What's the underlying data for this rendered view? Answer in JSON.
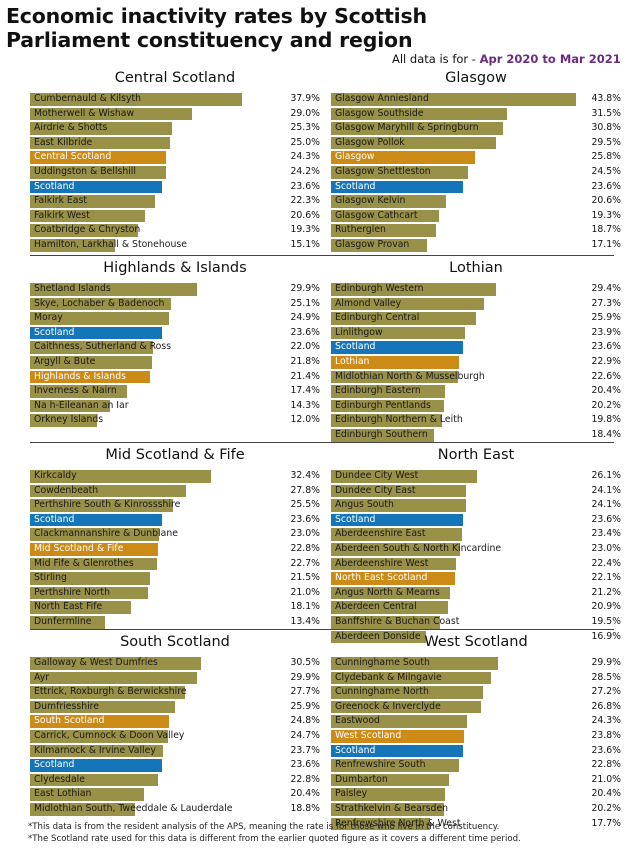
{
  "title": "Economic inactivity rates by Scottish Parliament constituency and region",
  "subtitle": {
    "prefix": "All data is for - ",
    "period": "Apr 2020 to Mar 2021"
  },
  "colors": {
    "constituency": "#9a9148",
    "region": "#cc8a16",
    "scotland": "#1475b8"
  },
  "footnotes": [
    "*This data is from the resident analysis of the APS, meaning the rate is for those who live in the constituency.",
    "*The Scotland rate used for this data is different from the earlier quoted figure as it covers a different time period."
  ],
  "chart_data": [
    {
      "type": "bar",
      "title": "Central Scotland",
      "xlim": [
        0,
        45
      ],
      "rows": [
        {
          "label": "Cumbernauld & Kilsyth",
          "value": 37.9,
          "display": "37.9%",
          "kind": "constituency"
        },
        {
          "label": "Motherwell & Wishaw",
          "value": 29.0,
          "display": "29.0%",
          "kind": "constituency"
        },
        {
          "label": "Airdrie & Shotts",
          "value": 25.3,
          "display": "25.3%",
          "kind": "constituency"
        },
        {
          "label": "East Kilbride",
          "value": 25.0,
          "display": "25.0%",
          "kind": "constituency"
        },
        {
          "label": "Central Scotland",
          "value": 24.3,
          "display": "24.3%",
          "kind": "region"
        },
        {
          "label": "Uddingston & Bellshill",
          "value": 24.2,
          "display": "24.2%",
          "kind": "constituency"
        },
        {
          "label": "Scotland",
          "value": 23.6,
          "display": "23.6%",
          "kind": "scotland"
        },
        {
          "label": "Falkirk East",
          "value": 22.3,
          "display": "22.3%",
          "kind": "constituency"
        },
        {
          "label": "Falkirk West",
          "value": 20.6,
          "display": "20.6%",
          "kind": "constituency"
        },
        {
          "label": "Coatbridge & Chryston",
          "value": 19.3,
          "display": "19.3%",
          "kind": "constituency"
        },
        {
          "label": "Hamilton, Larkhall & Stonehouse",
          "value": 15.1,
          "display": "15.1%",
          "kind": "constituency"
        }
      ]
    },
    {
      "type": "bar",
      "title": "Glasgow",
      "xlim": [
        0,
        45
      ],
      "rows": [
        {
          "label": "Glasgow Anniesland",
          "value": 43.8,
          "display": "43.8%",
          "kind": "constituency"
        },
        {
          "label": "Glasgow Southside",
          "value": 31.5,
          "display": "31.5%",
          "kind": "constituency"
        },
        {
          "label": "Glasgow Maryhill & Springburn",
          "value": 30.8,
          "display": "30.8%",
          "kind": "constituency"
        },
        {
          "label": "Glasgow Pollok",
          "value": 29.5,
          "display": "29.5%",
          "kind": "constituency"
        },
        {
          "label": "Glasgow",
          "value": 25.8,
          "display": "25.8%",
          "kind": "region"
        },
        {
          "label": "Glasgow Shettleston",
          "value": 24.5,
          "display": "24.5%",
          "kind": "constituency"
        },
        {
          "label": "Scotland",
          "value": 23.6,
          "display": "23.6%",
          "kind": "scotland"
        },
        {
          "label": "Glasgow Kelvin",
          "value": 20.6,
          "display": "20.6%",
          "kind": "constituency"
        },
        {
          "label": "Glasgow Cathcart",
          "value": 19.3,
          "display": "19.3%",
          "kind": "constituency"
        },
        {
          "label": "Rutherglen",
          "value": 18.7,
          "display": "18.7%",
          "kind": "constituency"
        },
        {
          "label": "Glasgow Provan",
          "value": 17.1,
          "display": "17.1%",
          "kind": "constituency"
        }
      ]
    },
    {
      "type": "bar",
      "title": "Highlands & Islands",
      "xlim": [
        0,
        45
      ],
      "rows": [
        {
          "label": "Shetland Islands",
          "value": 29.9,
          "display": "29.9%",
          "kind": "constituency"
        },
        {
          "label": "Skye, Lochaber & Badenoch",
          "value": 25.1,
          "display": "25.1%",
          "kind": "constituency"
        },
        {
          "label": "Moray",
          "value": 24.9,
          "display": "24.9%",
          "kind": "constituency"
        },
        {
          "label": "Scotland",
          "value": 23.6,
          "display": "23.6%",
          "kind": "scotland"
        },
        {
          "label": "Caithness, Sutherland & Ross",
          "value": 22.0,
          "display": "22.0%",
          "kind": "constituency"
        },
        {
          "label": "Argyll & Bute",
          "value": 21.8,
          "display": "21.8%",
          "kind": "constituency"
        },
        {
          "label": "Highlands & Islands",
          "value": 21.4,
          "display": "21.4%",
          "kind": "region"
        },
        {
          "label": "Inverness & Nairn",
          "value": 17.4,
          "display": "17.4%",
          "kind": "constituency"
        },
        {
          "label": "Na h-Eileanan an Iar",
          "value": 14.3,
          "display": "14.3%",
          "kind": "constituency"
        },
        {
          "label": "Orkney Islands",
          "value": 12.0,
          "display": "12.0%",
          "kind": "constituency"
        }
      ]
    },
    {
      "type": "bar",
      "title": "Lothian",
      "xlim": [
        0,
        45
      ],
      "rows": [
        {
          "label": "Edinburgh Western",
          "value": 29.4,
          "display": "29.4%",
          "kind": "constituency"
        },
        {
          "label": "Almond Valley",
          "value": 27.3,
          "display": "27.3%",
          "kind": "constituency"
        },
        {
          "label": "Edinburgh Central",
          "value": 25.9,
          "display": "25.9%",
          "kind": "constituency"
        },
        {
          "label": "Linlithgow",
          "value": 23.9,
          "display": "23.9%",
          "kind": "constituency"
        },
        {
          "label": "Scotland",
          "value": 23.6,
          "display": "23.6%",
          "kind": "scotland"
        },
        {
          "label": "Lothian",
          "value": 22.9,
          "display": "22.9%",
          "kind": "region"
        },
        {
          "label": "Midlothian North & Musselburgh",
          "value": 22.6,
          "display": "22.6%",
          "kind": "constituency"
        },
        {
          "label": "Edinburgh Eastern",
          "value": 20.4,
          "display": "20.4%",
          "kind": "constituency"
        },
        {
          "label": "Edinburgh Pentlands",
          "value": 20.2,
          "display": "20.2%",
          "kind": "constituency"
        },
        {
          "label": "Edinburgh Northern & Leith",
          "value": 19.8,
          "display": "19.8%",
          "kind": "constituency"
        },
        {
          "label": "Edinburgh Southern",
          "value": 18.4,
          "display": "18.4%",
          "kind": "constituency"
        }
      ]
    },
    {
      "type": "bar",
      "title": "Mid Scotland & Fife",
      "xlim": [
        0,
        45
      ],
      "rows": [
        {
          "label": "Kirkcaldy",
          "value": 32.4,
          "display": "32.4%",
          "kind": "constituency"
        },
        {
          "label": "Cowdenbeath",
          "value": 27.8,
          "display": "27.8%",
          "kind": "constituency"
        },
        {
          "label": "Perthshire South & Kinrossshire",
          "value": 25.5,
          "display": "25.5%",
          "kind": "constituency"
        },
        {
          "label": "Scotland",
          "value": 23.6,
          "display": "23.6%",
          "kind": "scotland"
        },
        {
          "label": "Clackmannanshire & Dunblane",
          "value": 23.0,
          "display": "23.0%",
          "kind": "constituency"
        },
        {
          "label": "Mid Scotland & Fife",
          "value": 22.8,
          "display": "22.8%",
          "kind": "region"
        },
        {
          "label": "Mid Fife & Glenrothes",
          "value": 22.7,
          "display": "22.7%",
          "kind": "constituency"
        },
        {
          "label": "Stirling",
          "value": 21.5,
          "display": "21.5%",
          "kind": "constituency"
        },
        {
          "label": "Perthshire North",
          "value": 21.0,
          "display": "21.0%",
          "kind": "constituency"
        },
        {
          "label": "North East Fife",
          "value": 18.1,
          "display": "18.1%",
          "kind": "constituency"
        },
        {
          "label": "Dunfermline",
          "value": 13.4,
          "display": "13.4%",
          "kind": "constituency"
        }
      ]
    },
    {
      "type": "bar",
      "title": "North East",
      "xlim": [
        0,
        45
      ],
      "rows": [
        {
          "label": "Dundee City West",
          "value": 26.1,
          "display": "26.1%",
          "kind": "constituency"
        },
        {
          "label": "Dundee City East",
          "value": 24.1,
          "display": "24.1%",
          "kind": "constituency"
        },
        {
          "label": "Angus South",
          "value": 24.1,
          "display": "24.1%",
          "kind": "constituency"
        },
        {
          "label": "Scotland",
          "value": 23.6,
          "display": "23.6%",
          "kind": "scotland"
        },
        {
          "label": "Aberdeenshire East",
          "value": 23.4,
          "display": "23.4%",
          "kind": "constituency"
        },
        {
          "label": "Aberdeen South & North Kincardine",
          "value": 23.0,
          "display": "23.0%",
          "kind": "constituency"
        },
        {
          "label": "Aberdeenshire West",
          "value": 22.4,
          "display": "22.4%",
          "kind": "constituency"
        },
        {
          "label": "North East Scotland",
          "value": 22.1,
          "display": "22.1%",
          "kind": "region"
        },
        {
          "label": "Angus North & Mearns",
          "value": 21.2,
          "display": "21.2%",
          "kind": "constituency"
        },
        {
          "label": "Aberdeen Central",
          "value": 20.9,
          "display": "20.9%",
          "kind": "constituency"
        },
        {
          "label": "Banffshire & Buchan Coast",
          "value": 19.5,
          "display": "19.5%",
          "kind": "constituency"
        },
        {
          "label": "Aberdeen Donside",
          "value": 16.9,
          "display": "16.9%",
          "kind": "constituency"
        }
      ]
    },
    {
      "type": "bar",
      "title": "South Scotland",
      "xlim": [
        0,
        45
      ],
      "rows": [
        {
          "label": "Galloway & West Dumfries",
          "value": 30.5,
          "display": "30.5%",
          "kind": "constituency"
        },
        {
          "label": "Ayr",
          "value": 29.9,
          "display": "29.9%",
          "kind": "constituency"
        },
        {
          "label": "Ettrick, Roxburgh & Berwickshire",
          "value": 27.7,
          "display": "27.7%",
          "kind": "constituency"
        },
        {
          "label": "Dumfriesshire",
          "value": 25.9,
          "display": "25.9%",
          "kind": "constituency"
        },
        {
          "label": "South Scotland",
          "value": 24.8,
          "display": "24.8%",
          "kind": "region"
        },
        {
          "label": "Carrick, Cumnock & Doon Valley",
          "value": 24.7,
          "display": "24.7%",
          "kind": "constituency"
        },
        {
          "label": "Kilmarnock & Irvine Valley",
          "value": 23.7,
          "display": "23.7%",
          "kind": "constituency"
        },
        {
          "label": "Scotland",
          "value": 23.6,
          "display": "23.6%",
          "kind": "scotland"
        },
        {
          "label": "Clydesdale",
          "value": 22.8,
          "display": "22.8%",
          "kind": "constituency"
        },
        {
          "label": "East Lothian",
          "value": 20.4,
          "display": "20.4%",
          "kind": "constituency"
        },
        {
          "label": "Midlothian South, Tweeddale & Lauderdale",
          "value": 18.8,
          "display": "18.8%",
          "kind": "constituency"
        }
      ]
    },
    {
      "type": "bar",
      "title": "West Scotland",
      "xlim": [
        0,
        45
      ],
      "rows": [
        {
          "label": "Cunninghame South",
          "value": 29.9,
          "display": "29.9%",
          "kind": "constituency"
        },
        {
          "label": "Clydebank & Milngavie",
          "value": 28.5,
          "display": "28.5%",
          "kind": "constituency"
        },
        {
          "label": "Cunninghame North",
          "value": 27.2,
          "display": "27.2%",
          "kind": "constituency"
        },
        {
          "label": "Greenock & Inverclyde",
          "value": 26.8,
          "display": "26.8%",
          "kind": "constituency"
        },
        {
          "label": "Eastwood",
          "value": 24.3,
          "display": "24.3%",
          "kind": "constituency"
        },
        {
          "label": "West Scotland",
          "value": 23.8,
          "display": "23.8%",
          "kind": "region"
        },
        {
          "label": "Scotland",
          "value": 23.6,
          "display": "23.6%",
          "kind": "scotland"
        },
        {
          "label": "Renfrewshire South",
          "value": 22.8,
          "display": "22.8%",
          "kind": "constituency"
        },
        {
          "label": "Dumbarton",
          "value": 21.0,
          "display": "21.0%",
          "kind": "constituency"
        },
        {
          "label": "Paisley",
          "value": 20.4,
          "display": "20.4%",
          "kind": "constituency"
        },
        {
          "label": "Strathkelvin & Bearsden",
          "value": 20.2,
          "display": "20.2%",
          "kind": "constituency"
        },
        {
          "label": "Renfrewshire North & West",
          "value": 17.7,
          "display": "17.7%",
          "kind": "constituency"
        }
      ]
    }
  ]
}
